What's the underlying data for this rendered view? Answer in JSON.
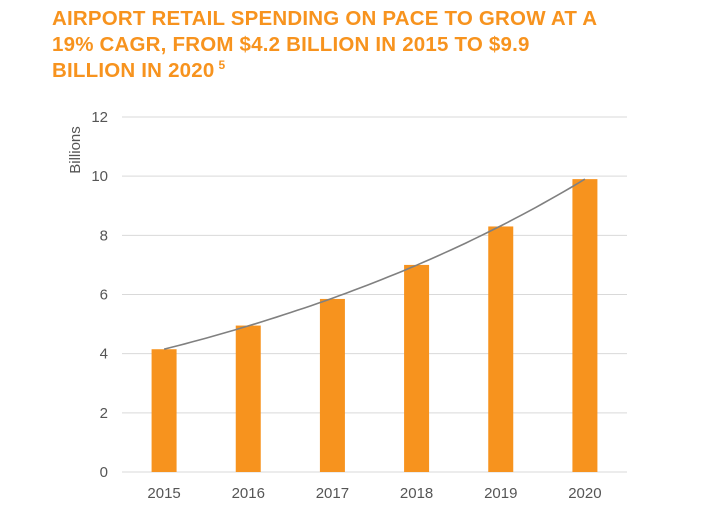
{
  "title": {
    "line1": "AIRPORT RETAIL SPENDING ON PACE TO GROW AT A",
    "line2": "19% CAGR, FROM $4.2 BILLION IN 2015 TO $9.9",
    "line3": "BILLION IN 2020",
    "footnote": "5"
  },
  "colors": {
    "accent": "#F7931E",
    "bar": "#F7931E",
    "trend": "#808080",
    "grid": "#d9d9d9"
  },
  "chart_data": {
    "type": "bar",
    "categories": [
      "2015",
      "2016",
      "2017",
      "2018",
      "2019",
      "2020"
    ],
    "values": [
      4.15,
      4.95,
      5.85,
      7.0,
      8.3,
      9.9
    ],
    "trendline": "exponential",
    "ylabel": "Billions",
    "ylim": [
      0,
      12
    ],
    "yticks": [
      0,
      2,
      4,
      6,
      8,
      10,
      12
    ],
    "grid": true,
    "legend": "none"
  }
}
